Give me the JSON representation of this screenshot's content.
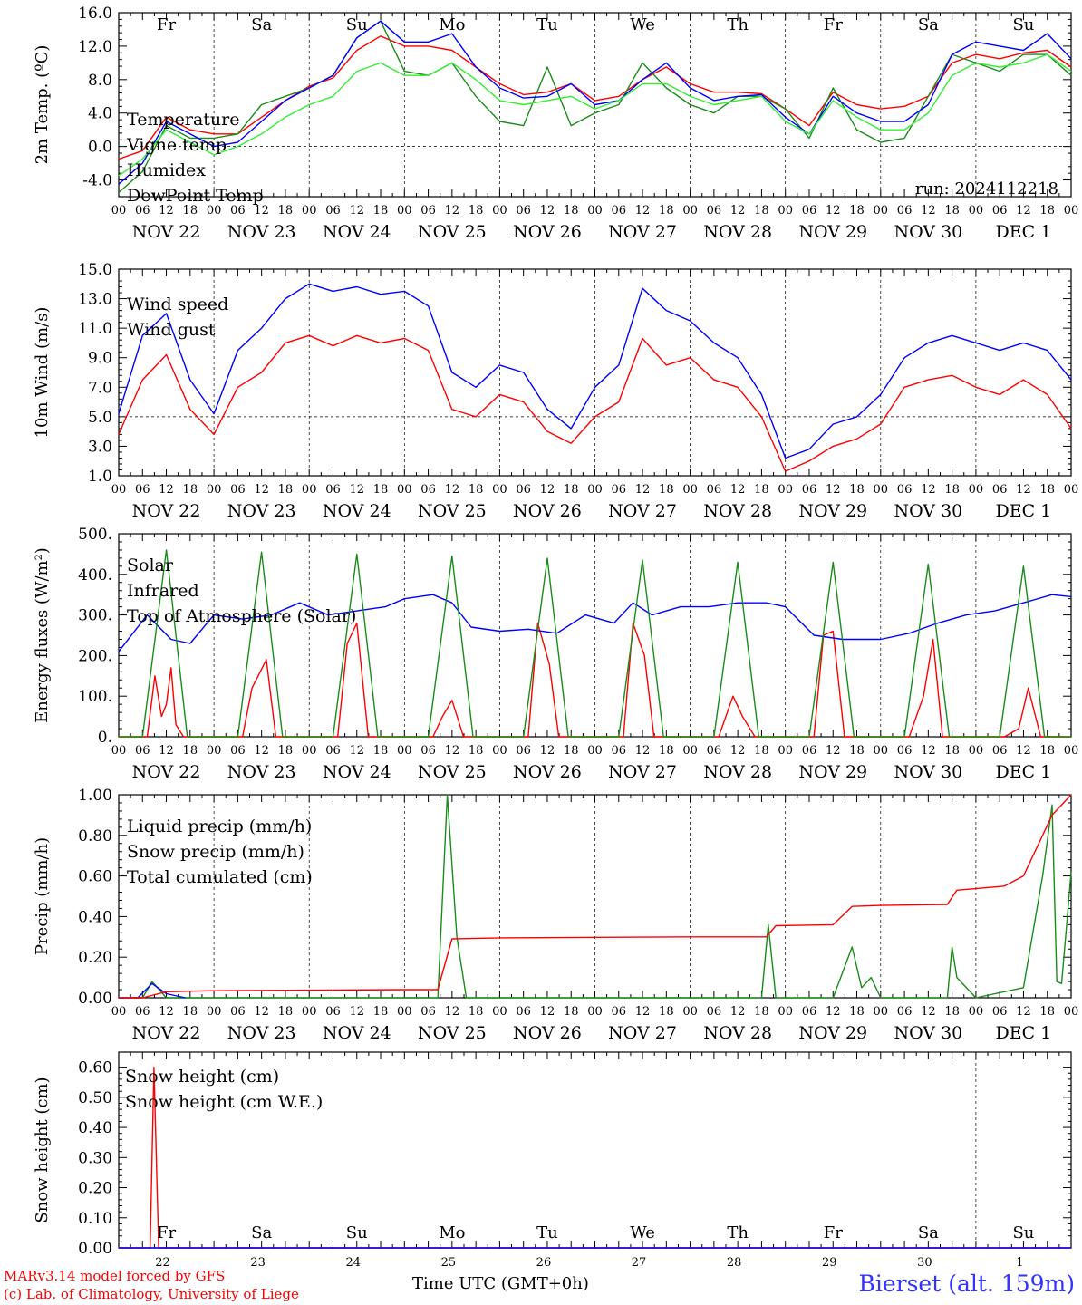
{
  "days": [
    "Fr",
    "Sa",
    "Su",
    "Mo",
    "Tu",
    "We",
    "Th",
    "Fr",
    "Sa",
    "Su"
  ],
  "weekend_days": [
    "Sa",
    "Su"
  ],
  "dates": [
    "NOV 22",
    "NOV 23",
    "NOV 24",
    "NOV 25",
    "NOV 26",
    "NOV 27",
    "NOV 28",
    "NOV 29",
    "NOV 30",
    "DEC  1"
  ],
  "date_numbers": [
    "22",
    "23",
    "24",
    "25",
    "26",
    "27",
    "28",
    "29",
    "30",
    "1"
  ],
  "hour_labels": [
    "00",
    "06",
    "12",
    "18"
  ],
  "final_hour_label": "00",
  "run_label": "run: 2024112218",
  "xlabel": "Time UTC (GMT+0h)",
  "footer": {
    "line1": "MARv3.14 model forced by GFS",
    "line2": "(c) Lab. of Climatology, University of Liege",
    "station": "Bierset (alt. 159m)"
  },
  "colors": {
    "red": "#ff0000",
    "green": "#1a8c1a",
    "blue": "#0000ff",
    "lime": "#33ee33",
    "station": "#3333ff"
  },
  "chart_data": [
    {
      "type": "line",
      "ylabel": "2m Temp. (ºC)",
      "ylim": [
        -6,
        16
      ],
      "yticks": [
        "16.0",
        "12.0",
        "8.0",
        "4.0",
        "0.0",
        "-4.0"
      ],
      "ytick_values": [
        16,
        12,
        8,
        4,
        0,
        -4
      ],
      "dashed_ref": 0,
      "series": [
        {
          "name": "Temperature",
          "color": "red",
          "x": [
            0,
            0.25,
            0.5,
            0.75,
            1,
            1.25,
            1.5,
            1.75,
            2,
            2.25,
            2.5,
            2.75,
            3,
            3.25,
            3.5,
            3.75,
            4,
            4.25,
            4.5,
            4.75,
            5,
            5.25,
            5.5,
            5.75,
            6,
            6.25,
            6.5,
            6.75,
            7,
            7.25,
            7.5,
            7.75,
            8,
            8.25,
            8.5,
            8.75,
            9,
            9.25,
            9.5,
            9.75,
            10
          ],
          "y": [
            -1.5,
            -0.5,
            3.5,
            2,
            1.5,
            1.5,
            3.5,
            5.5,
            7.2,
            8.2,
            11.5,
            13.2,
            12,
            12,
            11.5,
            9.5,
            7.5,
            6.2,
            6.5,
            7.5,
            5.5,
            6,
            8,
            9.5,
            7.5,
            6.5,
            6.5,
            6.3,
            4.5,
            2.5,
            6.5,
            5,
            4.5,
            4.8,
            6,
            10,
            11,
            10.5,
            11.2,
            11.5,
            9.5
          ]
        },
        {
          "name": "Vigne temp",
          "color": "green",
          "x": [
            0,
            0.25,
            0.5,
            0.75,
            1,
            1.25,
            1.5,
            1.75,
            2,
            2.25,
            2.5,
            2.75,
            3,
            3.25,
            3.5,
            3.75,
            4,
            4.25,
            4.5,
            4.75,
            5,
            5.25,
            5.5,
            5.75,
            6,
            6.25,
            6.5,
            6.75,
            7,
            7.25,
            7.5,
            7.75,
            8,
            8.25,
            8.5,
            8.75,
            9,
            9.25,
            9.5,
            9.75,
            10
          ],
          "y": [
            -5.5,
            -3,
            2.5,
            1,
            1,
            1.5,
            5,
            6,
            7,
            8.5,
            13,
            15,
            9,
            8.5,
            10,
            6,
            3,
            2.5,
            9.5,
            2.5,
            4,
            5,
            10,
            7,
            5,
            4,
            6,
            6,
            4.5,
            1,
            7,
            2,
            0.5,
            1,
            6,
            11,
            10,
            9,
            11,
            11,
            8.5
          ]
        },
        {
          "name": "Humidex",
          "color": "blue",
          "x": [
            0,
            0.25,
            0.5,
            0.75,
            1,
            1.25,
            1.5,
            1.75,
            2,
            2.25,
            2.5,
            2.75,
            3,
            3.25,
            3.5,
            3.75,
            4,
            4.25,
            4.5,
            4.75,
            5,
            5.25,
            5.5,
            5.75,
            6,
            6.25,
            6.5,
            6.75,
            7,
            7.25,
            7.5,
            7.75,
            8,
            8.25,
            8.5,
            8.75,
            9,
            9.25,
            9.5,
            9.75,
            10
          ],
          "y": [
            -4.5,
            -2,
            3,
            1.5,
            0,
            0.5,
            3,
            5.5,
            7,
            8.5,
            13,
            15,
            12.5,
            12.5,
            13.5,
            9.5,
            7,
            5.8,
            6,
            7.5,
            5,
            5.5,
            8,
            10,
            7,
            5.5,
            6,
            6.2,
            3.5,
            1.5,
            6,
            4,
            3,
            3,
            5,
            11,
            12.5,
            12,
            11.5,
            13.5,
            10.5
          ]
        },
        {
          "name": "DewPoint Temp",
          "color": "lime",
          "x": [
            0,
            0.25,
            0.5,
            0.75,
            1,
            1.25,
            1.5,
            1.75,
            2,
            2.25,
            2.5,
            2.75,
            3,
            3.25,
            3.5,
            3.75,
            4,
            4.25,
            4.5,
            4.75,
            5,
            5.25,
            5.5,
            5.75,
            6,
            6.25,
            6.5,
            6.75,
            7,
            7.25,
            7.5,
            7.75,
            8,
            8.25,
            8.5,
            8.75,
            9,
            9.25,
            9.5,
            9.75,
            10
          ],
          "y": [
            -3.5,
            -1.5,
            2,
            0.5,
            -1,
            0,
            1.5,
            3.5,
            5,
            6,
            9,
            10,
            8.5,
            8.5,
            10,
            8,
            5.5,
            5,
            5.5,
            6,
            4.5,
            5.5,
            7.5,
            7.5,
            6,
            5,
            5.5,
            6,
            3,
            1.5,
            5.5,
            3.5,
            2,
            2,
            4,
            8.5,
            10,
            9.5,
            10,
            11,
            9
          ]
        }
      ]
    },
    {
      "type": "line",
      "ylabel": "10m Wind (m/s)",
      "ylim": [
        1,
        15
      ],
      "yticks": [
        "15.0",
        "13.0",
        "11.0",
        "9.0",
        "7.0",
        "5.0",
        "3.0",
        "1.0"
      ],
      "ytick_values": [
        15,
        13,
        11,
        9,
        7,
        5,
        3,
        1
      ],
      "dashed_ref": 5,
      "series": [
        {
          "name": "Wind speed",
          "color": "red",
          "x": [
            0,
            0.25,
            0.5,
            0.75,
            1,
            1.25,
            1.5,
            1.75,
            2,
            2.25,
            2.5,
            2.75,
            3,
            3.25,
            3.5,
            3.75,
            4,
            4.25,
            4.5,
            4.75,
            5,
            5.25,
            5.5,
            5.75,
            6,
            6.25,
            6.5,
            6.75,
            7,
            7.25,
            7.5,
            7.75,
            8,
            8.25,
            8.5,
            8.75,
            9,
            9.25,
            9.5,
            9.75,
            10
          ],
          "y": [
            3.8,
            7.5,
            9.2,
            5.5,
            3.8,
            7,
            8,
            10,
            10.5,
            9.8,
            10.5,
            10,
            10.3,
            9.5,
            5.5,
            5,
            6.5,
            6,
            4,
            3.2,
            5,
            6,
            10.3,
            8.5,
            9,
            7.5,
            7,
            5,
            1.3,
            2,
            3,
            3.5,
            4.5,
            7,
            7.5,
            7.8,
            7,
            6.5,
            7.5,
            6.5,
            4.2
          ]
        },
        {
          "name": "Wind gust",
          "color": "blue",
          "x": [
            0,
            0.25,
            0.5,
            0.75,
            1,
            1.25,
            1.5,
            1.75,
            2,
            2.25,
            2.5,
            2.75,
            3,
            3.25,
            3.5,
            3.75,
            4,
            4.25,
            4.5,
            4.75,
            5,
            5.25,
            5.5,
            5.75,
            6,
            6.25,
            6.5,
            6.75,
            7,
            7.25,
            7.5,
            7.75,
            8,
            8.25,
            8.5,
            8.75,
            9,
            9.25,
            9.5,
            9.75,
            10
          ],
          "y": [
            5.2,
            10.5,
            12,
            7.5,
            5.2,
            9.5,
            11,
            13,
            14,
            13.5,
            13.8,
            13.3,
            13.5,
            12.5,
            8,
            7,
            8.5,
            8,
            5.5,
            4.2,
            7,
            8.5,
            13.7,
            12.2,
            11.5,
            10,
            9,
            6.5,
            2.2,
            2.8,
            4.5,
            5,
            6.5,
            9,
            10,
            10.5,
            10,
            9.5,
            10,
            9.5,
            7.5
          ]
        }
      ]
    },
    {
      "type": "line",
      "ylabel": "Energy fluxes (W/m²)",
      "ylim": [
        0,
        500
      ],
      "yticks": [
        "500.",
        "400.",
        "300.",
        "200.",
        "100.",
        "0."
      ],
      "ytick_values": [
        500,
        400,
        300,
        200,
        100,
        0
      ],
      "series": [
        {
          "name": "Solar",
          "color": "red",
          "x": [
            0,
            0.3,
            0.38,
            0.45,
            0.5,
            0.55,
            0.6,
            0.68,
            1,
            1.3,
            1.4,
            1.55,
            1.65,
            2,
            2.3,
            2.4,
            2.5,
            2.62,
            3,
            3.3,
            3.4,
            3.5,
            3.62,
            4,
            4.3,
            4.4,
            4.52,
            4.62,
            5,
            5.3,
            5.4,
            5.52,
            5.62,
            6,
            6.3,
            6.45,
            6.55,
            6.68,
            7,
            7.3,
            7.4,
            7.5,
            7.62,
            8,
            8.3,
            8.45,
            8.55,
            8.65,
            9,
            9.3,
            9.45,
            9.55,
            9.68,
            10
          ],
          "y": [
            0,
            0,
            150,
            50,
            80,
            170,
            30,
            0,
            0,
            0,
            120,
            190,
            0,
            0,
            0,
            230,
            280,
            0,
            0,
            0,
            50,
            90,
            0,
            0,
            0,
            280,
            180,
            0,
            0,
            0,
            280,
            200,
            0,
            0,
            0,
            100,
            50,
            0,
            0,
            0,
            250,
            260,
            0,
            0,
            0,
            100,
            240,
            0,
            0,
            0,
            20,
            120,
            0,
            0
          ]
        },
        {
          "name": "Infrared",
          "color": "blue",
          "x": [
            0,
            0.3,
            0.55,
            0.75,
            1,
            1.3,
            1.6,
            1.9,
            2.2,
            2.5,
            2.8,
            3,
            3.3,
            3.5,
            3.7,
            4,
            4.3,
            4.6,
            4.9,
            5.2,
            5.4,
            5.6,
            5.9,
            6.2,
            6.5,
            6.8,
            7,
            7.3,
            7.6,
            8,
            8.3,
            8.6,
            8.9,
            9.2,
            9.5,
            9.8,
            10
          ],
          "y": [
            210,
            300,
            240,
            230,
            300,
            290,
            300,
            330,
            300,
            310,
            320,
            340,
            350,
            330,
            270,
            260,
            265,
            255,
            300,
            280,
            330,
            300,
            320,
            320,
            330,
            330,
            320,
            250,
            240,
            240,
            255,
            280,
            300,
            310,
            330,
            350,
            345
          ]
        },
        {
          "name": "Top of Atmosphere (Solar)",
          "color": "green",
          "x": [
            0,
            0.25,
            0.5,
            0.72,
            1,
            1.25,
            1.5,
            1.72,
            2,
            2.25,
            2.5,
            2.72,
            3,
            3.25,
            3.5,
            3.72,
            4,
            4.25,
            4.5,
            4.72,
            5,
            5.25,
            5.5,
            5.72,
            6,
            6.25,
            6.5,
            6.72,
            7,
            7.25,
            7.5,
            7.72,
            8,
            8.25,
            8.5,
            8.72,
            9,
            9.25,
            9.5,
            9.72,
            10
          ],
          "y": [
            0,
            0,
            460,
            0,
            0,
            0,
            455,
            0,
            0,
            0,
            450,
            0,
            0,
            0,
            445,
            0,
            0,
            0,
            440,
            0,
            0,
            0,
            435,
            0,
            0,
            0,
            430,
            0,
            0,
            0,
            430,
            0,
            0,
            0,
            425,
            0,
            0,
            0,
            420,
            0,
            0
          ]
        }
      ]
    },
    {
      "type": "line",
      "ylabel": "Precip (mm/h)",
      "ylim": [
        0,
        1
      ],
      "yticks": [
        "1.00",
        "0.80",
        "0.60",
        "0.40",
        "0.20",
        "0.00"
      ],
      "ytick_values": [
        1,
        0.8,
        0.6,
        0.4,
        0.2,
        0
      ],
      "series": [
        {
          "name": "Liquid precip (mm/h)",
          "color": "green",
          "x": [
            0,
            0.25,
            0.35,
            0.5,
            1,
            3,
            3.35,
            3.45,
            3.55,
            3.65,
            4,
            6,
            6.75,
            6.82,
            6.9,
            7,
            7.5,
            7.7,
            7.8,
            7.9,
            8,
            8,
            8.7,
            8.75,
            8.8,
            9,
            9.5,
            9.7,
            9.8,
            9.85,
            9.9,
            10
          ],
          "y": [
            0,
            0,
            0.08,
            0,
            0,
            0,
            0,
            1,
            0.3,
            0,
            0,
            0,
            0,
            0.36,
            0,
            0,
            0,
            0.25,
            0.05,
            0.1,
            0,
            0,
            0,
            0.25,
            0.1,
            0,
            0.05,
            0.6,
            0.95,
            0.08,
            0.07,
            0.62
          ]
        },
        {
          "name": "Snow precip (mm/h)",
          "color": "blue",
          "x": [
            0,
            0.2,
            0.35,
            0.5,
            0.7
          ],
          "y": [
            0,
            0,
            0.07,
            0.02,
            0
          ]
        },
        {
          "name": "Total cumulated (cm)",
          "color": "red",
          "x": [
            0,
            0.25,
            0.5,
            1,
            3,
            3.35,
            3.5,
            4,
            6,
            6.8,
            6.9,
            7.5,
            7.7,
            8,
            8.7,
            8.8,
            9.3,
            9.5,
            9.7,
            9.8,
            10
          ],
          "y": [
            0,
            0,
            0.03,
            0.035,
            0.04,
            0.04,
            0.29,
            0.295,
            0.3,
            0.3,
            0.355,
            0.36,
            0.45,
            0.455,
            0.46,
            0.53,
            0.55,
            0.6,
            0.8,
            0.9,
            1
          ]
        }
      ]
    },
    {
      "type": "line",
      "ylabel": "Snow height (cm)",
      "ylim": [
        0,
        0.65
      ],
      "yticks": [
        "0.60",
        "0.50",
        "0.40",
        "0.30",
        "0.20",
        "0.10",
        "0.00"
      ],
      "ytick_values": [
        0.6,
        0.5,
        0.4,
        0.3,
        0.2,
        0.1,
        0
      ],
      "series": [
        {
          "name": "Snow height (cm)",
          "color": "red",
          "x": [
            0,
            0.33,
            0.37,
            0.42,
            10
          ],
          "y": [
            0,
            0,
            0.6,
            0,
            0
          ]
        },
        {
          "name": "Snow height (cm W.E.)",
          "color": "blue",
          "x": [
            0,
            10
          ],
          "y": [
            0,
            0
          ]
        }
      ]
    }
  ]
}
